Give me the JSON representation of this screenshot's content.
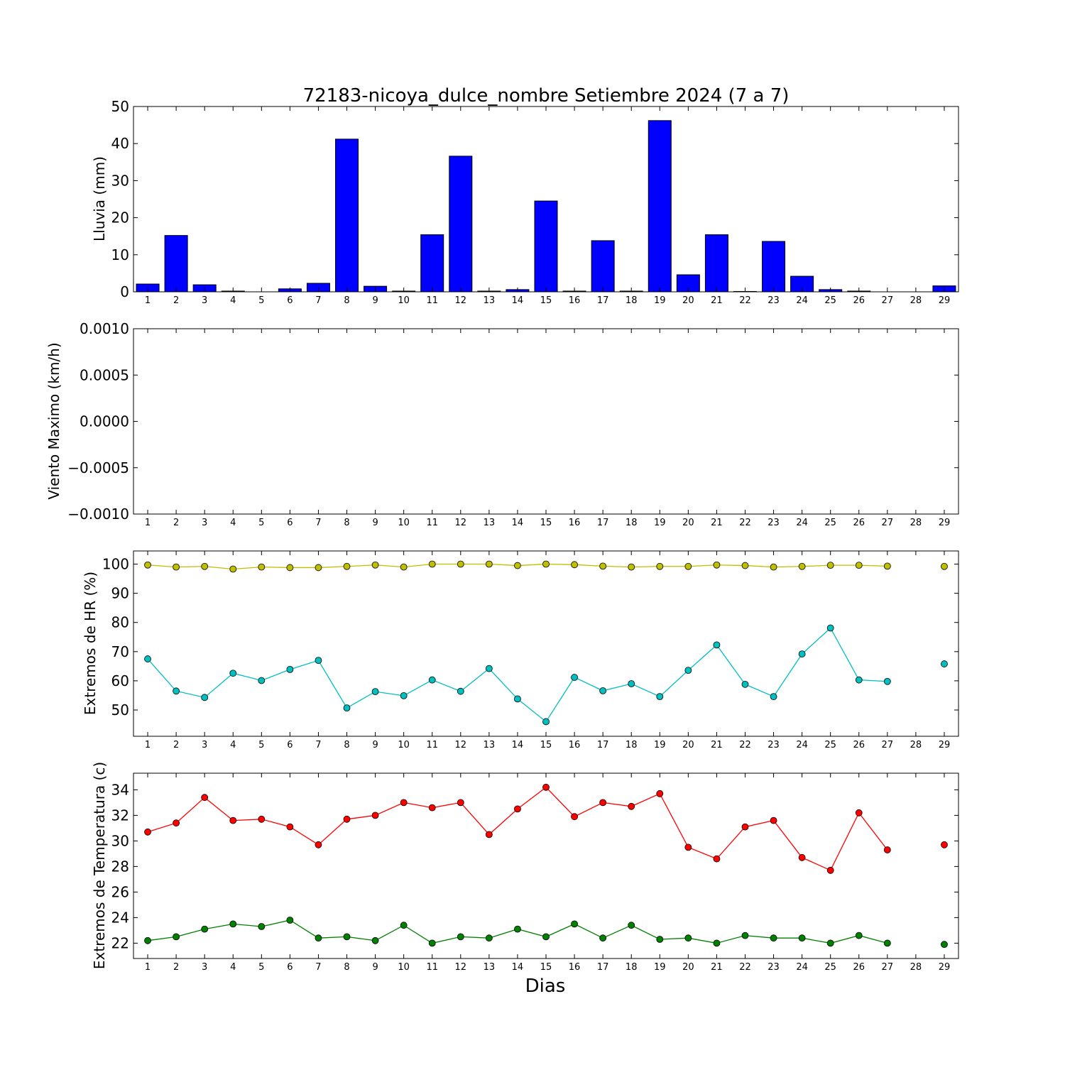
{
  "chart_data": [
    {
      "type": "bar",
      "title": "72183-nicoya_dulce_nombre Setiembre 2024  (7 a 7)",
      "ylabel": "Lluvia (mm)",
      "ylim": [
        0,
        50
      ],
      "yticks": [
        "0",
        "10",
        "20",
        "30",
        "40",
        "50"
      ],
      "categories": [
        "1",
        "2",
        "3",
        "4",
        "5",
        "6",
        "7",
        "8",
        "9",
        "10",
        "11",
        "12",
        "13",
        "14",
        "15",
        "16",
        "17",
        "18",
        "19",
        "20",
        "21",
        "22",
        "23",
        "24",
        "25",
        "26",
        "27",
        "28",
        "29"
      ],
      "values": [
        2.1,
        15.2,
        1.9,
        0.2,
        0.0,
        0.8,
        2.3,
        41.2,
        1.5,
        0.2,
        15.4,
        36.6,
        0.2,
        0.6,
        24.5,
        0.2,
        13.8,
        0.2,
        46.2,
        4.6,
        15.4,
        0.1,
        13.6,
        4.2,
        0.6,
        0.2,
        0.0,
        null,
        1.6
      ],
      "color": "#0000ff"
    },
    {
      "type": "line",
      "ylabel": "Viento Maximo (km/h)",
      "ylim": [
        -0.001,
        0.001
      ],
      "yticks": [
        "−0.0010",
        "−0.0005",
        "0.0000",
        "0.0005",
        "0.0010"
      ],
      "categories": [
        "1",
        "2",
        "3",
        "4",
        "5",
        "6",
        "7",
        "8",
        "9",
        "10",
        "11",
        "12",
        "13",
        "14",
        "15",
        "16",
        "17",
        "18",
        "19",
        "20",
        "21",
        "22",
        "23",
        "24",
        "25",
        "26",
        "27",
        "28",
        "29"
      ],
      "series": []
    },
    {
      "type": "line",
      "ylabel": "Extremos de HR (%)",
      "ylim": [
        41,
        104.5
      ],
      "yticks": [
        "50",
        "60",
        "70",
        "80",
        "90",
        "100"
      ],
      "categories": [
        "1",
        "2",
        "3",
        "4",
        "5",
        "6",
        "7",
        "8",
        "9",
        "10",
        "11",
        "12",
        "13",
        "14",
        "15",
        "16",
        "17",
        "18",
        "19",
        "20",
        "21",
        "22",
        "23",
        "24",
        "25",
        "26",
        "27",
        "28",
        "29"
      ],
      "series": [
        {
          "color": "#bfbf00",
          "values": [
            99.7,
            99.0,
            99.2,
            98.3,
            99.0,
            98.8,
            98.8,
            99.2,
            99.7,
            99.0,
            100.0,
            100.0,
            100.0,
            99.5,
            100.0,
            99.8,
            99.3,
            99.0,
            99.2,
            99.2,
            99.7,
            99.5,
            99.0,
            99.2,
            99.6,
            99.6,
            99.3,
            null,
            99.2
          ]
        },
        {
          "color": "#00bfbf",
          "values": [
            67.5,
            56.5,
            54.3,
            62.6,
            60.1,
            63.9,
            67.0,
            50.7,
            56.3,
            54.9,
            60.3,
            56.4,
            64.2,
            53.8,
            46.0,
            61.2,
            56.6,
            59.0,
            54.6,
            63.6,
            72.3,
            58.8,
            54.6,
            69.2,
            78.1,
            60.3,
            59.8,
            null,
            65.8
          ]
        }
      ]
    },
    {
      "type": "line",
      "ylabel": "Extremos de Temperatura (c)",
      "xlabel": "Dias",
      "ylim": [
        20.8,
        35.3
      ],
      "yticks": [
        "22",
        "24",
        "26",
        "28",
        "30",
        "32",
        "34"
      ],
      "categories": [
        "1",
        "2",
        "3",
        "4",
        "5",
        "6",
        "7",
        "8",
        "9",
        "10",
        "11",
        "12",
        "13",
        "14",
        "15",
        "16",
        "17",
        "18",
        "19",
        "20",
        "21",
        "22",
        "23",
        "24",
        "25",
        "26",
        "27",
        "28",
        "29"
      ],
      "series": [
        {
          "color": "#ff0000",
          "values": [
            30.7,
            31.4,
            33.4,
            31.6,
            31.7,
            31.1,
            29.7,
            31.7,
            32.0,
            33.0,
            32.6,
            33.0,
            30.5,
            32.5,
            34.2,
            31.9,
            33.0,
            32.7,
            33.7,
            29.5,
            28.6,
            31.1,
            31.6,
            28.7,
            27.7,
            32.2,
            29.3,
            null,
            29.7
          ]
        },
        {
          "color": "#008000",
          "values": [
            22.2,
            22.5,
            23.1,
            23.5,
            23.3,
            23.8,
            22.4,
            22.5,
            22.2,
            23.4,
            22.0,
            22.5,
            22.4,
            23.1,
            22.5,
            23.5,
            22.4,
            23.4,
            22.3,
            22.4,
            22.0,
            22.6,
            22.4,
            22.4,
            22.0,
            22.6,
            22.0,
            null,
            21.9
          ]
        }
      ]
    }
  ]
}
